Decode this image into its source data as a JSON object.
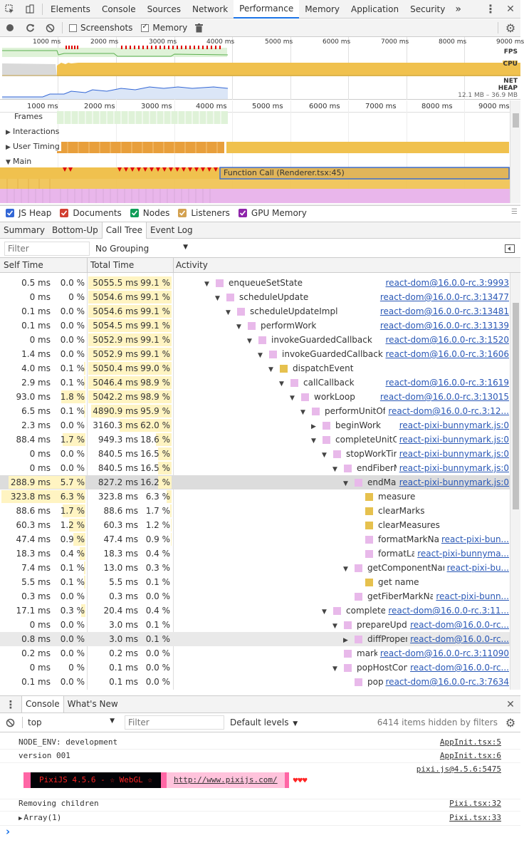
{
  "tabs": [
    "Elements",
    "Console",
    "Sources",
    "Network",
    "Performance",
    "Memory",
    "Application",
    "Security"
  ],
  "active_tab": "Performance",
  "overflow_label": "»",
  "perf_toolbar": {
    "screenshots": "Screenshots",
    "memory": "Memory",
    "screenshots_checked": false,
    "memory_checked": true
  },
  "overview": {
    "ticks": [
      "1000 ms",
      "2000 ms",
      "3000 ms",
      "4000 ms",
      "5000 ms",
      "6000 ms",
      "7000 ms",
      "8000 ms",
      "9000 ms"
    ],
    "labels": {
      "fps": "FPS",
      "cpu": "CPU",
      "net": "NET",
      "heap": "HEAP"
    },
    "heap_range": "12.1 MB – 36.9 MB"
  },
  "flame": {
    "ticks": [
      "1000 ms",
      "2000 ms",
      "3000 ms",
      "4000 ms",
      "5000 ms",
      "6000 ms",
      "7000 ms",
      "8000 ms",
      "9000 ms"
    ],
    "tracks": {
      "frames": "Frames",
      "interactions": "Interactions",
      "user_timing": "User Timing",
      "main": "Main"
    },
    "function_call": "Function Call (Renderer.tsx:45)"
  },
  "legend": [
    {
      "label": "JS Heap",
      "checked": true,
      "color": "#3367d6"
    },
    {
      "label": "Documents",
      "checked": true,
      "color": "#d23f31"
    },
    {
      "label": "Nodes",
      "checked": true,
      "color": "#0f9d58"
    },
    {
      "label": "Listeners",
      "checked": true,
      "color": "#d3a150"
    },
    {
      "label": "GPU Memory",
      "checked": true,
      "color": "#8e24aa"
    }
  ],
  "subtabs": [
    "Summary",
    "Bottom-Up",
    "Call Tree",
    "Event Log"
  ],
  "active_subtab": "Call Tree",
  "filter": {
    "placeholder": "Filter",
    "grouping": "No Grouping"
  },
  "columns": {
    "self": "Self Time",
    "total": "Total Time",
    "activity": "Activity"
  },
  "rows": [
    {
      "self": "0.5 ms",
      "self_pct": "0.0 %",
      "self_frac": 0.0,
      "total": "5055.5 ms",
      "total_pct": "99.1 %",
      "total_frac": 0.991,
      "depth": 3,
      "arrow": "▼",
      "color": "#e8b9ea",
      "name": "enqueueSetState",
      "src": "react-dom@16.0.0-rc.3:9993"
    },
    {
      "self": "0 ms",
      "self_pct": "0 %",
      "self_frac": 0.0,
      "total": "5054.6 ms",
      "total_pct": "99.1 %",
      "total_frac": 0.991,
      "depth": 4,
      "arrow": "▼",
      "color": "#e8b9ea",
      "name": "scheduleUpdate",
      "src": "react-dom@16.0.0-rc.3:13477"
    },
    {
      "self": "0.1 ms",
      "self_pct": "0.0 %",
      "self_frac": 0.0,
      "total": "5054.6 ms",
      "total_pct": "99.1 %",
      "total_frac": 0.991,
      "depth": 5,
      "arrow": "▼",
      "color": "#e8b9ea",
      "name": "scheduleUpdateImpl",
      "src": "react-dom@16.0.0-rc.3:13481"
    },
    {
      "self": "0.1 ms",
      "self_pct": "0.0 %",
      "self_frac": 0.0,
      "total": "5054.5 ms",
      "total_pct": "99.1 %",
      "total_frac": 0.991,
      "depth": 6,
      "arrow": "▼",
      "color": "#e8b9ea",
      "name": "performWork",
      "src": "react-dom@16.0.0-rc.3:13139"
    },
    {
      "self": "0 ms",
      "self_pct": "0.0 %",
      "self_frac": 0.0,
      "total": "5052.9 ms",
      "total_pct": "99.1 %",
      "total_frac": 0.991,
      "depth": 7,
      "arrow": "▼",
      "color": "#e8b9ea",
      "name": "invokeGuardedCallback",
      "src": "react-dom@16.0.0-rc.3:1520"
    },
    {
      "self": "1.4 ms",
      "self_pct": "0.0 %",
      "self_frac": 0.0,
      "total": "5052.9 ms",
      "total_pct": "99.1 %",
      "total_frac": 0.991,
      "depth": 8,
      "arrow": "▼",
      "color": "#e8b9ea",
      "name": "invokeGuardedCallbackDev",
      "src": "react-dom@16.0.0-rc.3:1606"
    },
    {
      "self": "4.0 ms",
      "self_pct": "0.1 %",
      "self_frac": 0.001,
      "total": "5050.4 ms",
      "total_pct": "99.0 %",
      "total_frac": 0.99,
      "depth": 9,
      "arrow": "▼",
      "color": "#e6c14e",
      "name": "dispatchEvent",
      "src": ""
    },
    {
      "self": "2.9 ms",
      "self_pct": "0.1 %",
      "self_frac": 0.001,
      "total": "5046.4 ms",
      "total_pct": "98.9 %",
      "total_frac": 0.989,
      "depth": 10,
      "arrow": "▼",
      "color": "#e8b9ea",
      "name": "callCallback",
      "src": "react-dom@16.0.0-rc.3:1619"
    },
    {
      "self": "93.0 ms",
      "self_pct": "1.8 %",
      "self_frac": 0.018,
      "total": "5042.2 ms",
      "total_pct": "98.9 %",
      "total_frac": 0.989,
      "depth": 11,
      "arrow": "▼",
      "color": "#e8b9ea",
      "name": "workLoop",
      "src": "react-dom@16.0.0-rc.3:13015"
    },
    {
      "self": "6.5 ms",
      "self_pct": "0.1 %",
      "self_frac": 0.001,
      "total": "4890.9 ms",
      "total_pct": "95.9 %",
      "total_frac": 0.959,
      "depth": 12,
      "arrow": "▼",
      "color": "#e8b9ea",
      "name": "performUnitOfWork",
      "src": "react-dom@16.0.0-rc.3:12..."
    },
    {
      "self": "2.3 ms",
      "self_pct": "0.0 %",
      "self_frac": 0.0,
      "total": "3160.3 ms",
      "total_pct": "62.0 %",
      "total_frac": 0.62,
      "depth": 13,
      "arrow": "▶",
      "color": "#e8b9ea",
      "name": "beginWork",
      "src": "react-pixi-bunnymark.js:0"
    },
    {
      "self": "88.4 ms",
      "self_pct": "1.7 %",
      "self_frac": 0.017,
      "total": "949.3 ms",
      "total_pct": "18.6 %",
      "total_frac": 0.186,
      "depth": 13,
      "arrow": "▼",
      "color": "#e8b9ea",
      "name": "completeUnitOfWork",
      "src": "react-pixi-bunnymark.js:0"
    },
    {
      "self": "0 ms",
      "self_pct": "0.0 %",
      "self_frac": 0.0,
      "total": "840.5 ms",
      "total_pct": "16.5 %",
      "total_frac": 0.165,
      "depth": 14,
      "arrow": "▼",
      "color": "#e8b9ea",
      "name": "stopWorkTimer",
      "src": "react-pixi-bunnymark.js:0"
    },
    {
      "self": "0 ms",
      "self_pct": "0.0 %",
      "self_frac": 0.0,
      "total": "840.5 ms",
      "total_pct": "16.5 %",
      "total_frac": 0.165,
      "depth": 15,
      "arrow": "▼",
      "color": "#e8b9ea",
      "name": "endFiberMark",
      "src": "react-pixi-bunnymark.js:0"
    },
    {
      "self": "288.9 ms",
      "self_pct": "5.7 %",
      "self_frac": 0.057,
      "total": "827.2 ms",
      "total_pct": "16.2 %",
      "total_frac": 0.162,
      "depth": 16,
      "arrow": "▼",
      "color": "#e8b9ea",
      "name": "endMark",
      "src": "react-pixi-bunnymark.js:0",
      "sel": true
    },
    {
      "self": "323.8 ms",
      "self_pct": "6.3 %",
      "self_frac": 0.063,
      "total": "323.8 ms",
      "total_pct": "6.3 %",
      "total_frac": 0.063,
      "depth": 17,
      "arrow": "",
      "color": "#e6c14e",
      "name": "measure",
      "src": ""
    },
    {
      "self": "88.6 ms",
      "self_pct": "1.7 %",
      "self_frac": 0.017,
      "total": "88.6 ms",
      "total_pct": "1.7 %",
      "total_frac": 0.017,
      "depth": 17,
      "arrow": "",
      "color": "#e6c14e",
      "name": "clearMarks",
      "src": ""
    },
    {
      "self": "60.3 ms",
      "self_pct": "1.2 %",
      "self_frac": 0.012,
      "total": "60.3 ms",
      "total_pct": "1.2 %",
      "total_frac": 0.012,
      "depth": 17,
      "arrow": "",
      "color": "#e6c14e",
      "name": "clearMeasures",
      "src": ""
    },
    {
      "self": "47.4 ms",
      "self_pct": "0.9 %",
      "self_frac": 0.009,
      "total": "47.4 ms",
      "total_pct": "0.9 %",
      "total_frac": 0.009,
      "depth": 17,
      "arrow": "",
      "color": "#e8b9ea",
      "name": "formatMarkName",
      "src": "react-pixi-bun..."
    },
    {
      "self": "18.3 ms",
      "self_pct": "0.4 %",
      "self_frac": 0.004,
      "total": "18.3 ms",
      "total_pct": "0.4 %",
      "total_frac": 0.004,
      "depth": 17,
      "arrow": "",
      "color": "#e8b9ea",
      "name": "formatLabel",
      "src": "react-pixi-bunnyma..."
    },
    {
      "self": "7.4 ms",
      "self_pct": "0.1 %",
      "self_frac": 0.001,
      "total": "13.0 ms",
      "total_pct": "0.3 %",
      "total_frac": 0.003,
      "depth": 16,
      "arrow": "▼",
      "color": "#e8b9ea",
      "name": "getComponentName",
      "src": "react-pixi-bu..."
    },
    {
      "self": "5.5 ms",
      "self_pct": "0.1 %",
      "self_frac": 0.001,
      "total": "5.5 ms",
      "total_pct": "0.1 %",
      "total_frac": 0.001,
      "depth": 17,
      "arrow": "",
      "color": "#e6c14e",
      "name": "get name",
      "src": ""
    },
    {
      "self": "0.3 ms",
      "self_pct": "0.0 %",
      "self_frac": 0.0,
      "total": "0.3 ms",
      "total_pct": "0.0 %",
      "total_frac": 0.0,
      "depth": 16,
      "arrow": "",
      "color": "#e8b9ea",
      "name": "getFiberMarkName",
      "src": "react-pixi-bunn..."
    },
    {
      "self": "17.1 ms",
      "self_pct": "0.3 %",
      "self_frac": 0.003,
      "total": "20.4 ms",
      "total_pct": "0.4 %",
      "total_frac": 0.004,
      "depth": 14,
      "arrow": "▼",
      "color": "#e8b9ea",
      "name": "completeWork",
      "src": "react-dom@16.0.0-rc.3:11..."
    },
    {
      "self": "0 ms",
      "self_pct": "0.0 %",
      "self_frac": 0.0,
      "total": "3.0 ms",
      "total_pct": "0.1 %",
      "total_frac": 0.001,
      "depth": 15,
      "arrow": "▼",
      "color": "#e8b9ea",
      "name": "prepareUpdate",
      "src": "react-dom@16.0.0-rc..."
    },
    {
      "self": "0.8 ms",
      "self_pct": "0.0 %",
      "self_frac": 0.0,
      "total": "3.0 ms",
      "total_pct": "0.1 %",
      "total_frac": 0.001,
      "depth": 16,
      "arrow": "▶",
      "color": "#e8b9ea",
      "name": "diffProperties",
      "src": "react-dom@16.0.0-rc...",
      "hl": true
    },
    {
      "self": "0.2 ms",
      "self_pct": "0.0 %",
      "self_frac": 0.0,
      "total": "0.2 ms",
      "total_pct": "0.0 %",
      "total_frac": 0.0,
      "depth": 15,
      "arrow": "",
      "color": "#e8b9ea",
      "name": "markRef",
      "src": "react-dom@16.0.0-rc.3:11090"
    },
    {
      "self": "0 ms",
      "self_pct": "0 %",
      "self_frac": 0.0,
      "total": "0.1 ms",
      "total_pct": "0.0 %",
      "total_frac": 0.0,
      "depth": 15,
      "arrow": "▼",
      "color": "#e8b9ea",
      "name": "popHostContext",
      "src": "react-dom@16.0.0-rc..."
    },
    {
      "self": "0.1 ms",
      "self_pct": "0.0 %",
      "self_frac": 0.0,
      "total": "0.1 ms",
      "total_pct": "0.0 %",
      "total_frac": 0.0,
      "depth": 16,
      "arrow": "",
      "color": "#e8b9ea",
      "name": "pop$1",
      "src": "react-dom@16.0.0-rc.3:7634"
    }
  ],
  "console": {
    "tabs": [
      "Console",
      "What's New"
    ],
    "context": "top",
    "filter_placeholder": "Filter",
    "levels": "Default levels",
    "hidden": "6414 items hidden by filters",
    "lines": [
      {
        "text": "NODE_ENV: development",
        "src": "AppInit.tsx:5"
      },
      {
        "text": "version 001",
        "src": "AppInit.tsx:6"
      }
    ],
    "pixi_src": "pixi.js@4.5.6:5475",
    "pixi_banner": "PixiJS 4.5.6 - ☆ WebGL ☆",
    "pixi_url": "http://www.pixijs.com/",
    "pixi_hearts": "♥♥♥",
    "removing": {
      "text": "Removing children",
      "src": "Pixi.tsx:32"
    },
    "array": {
      "text": "Array(1)",
      "src": "Pixi.tsx:33"
    },
    "prompt": "›"
  }
}
